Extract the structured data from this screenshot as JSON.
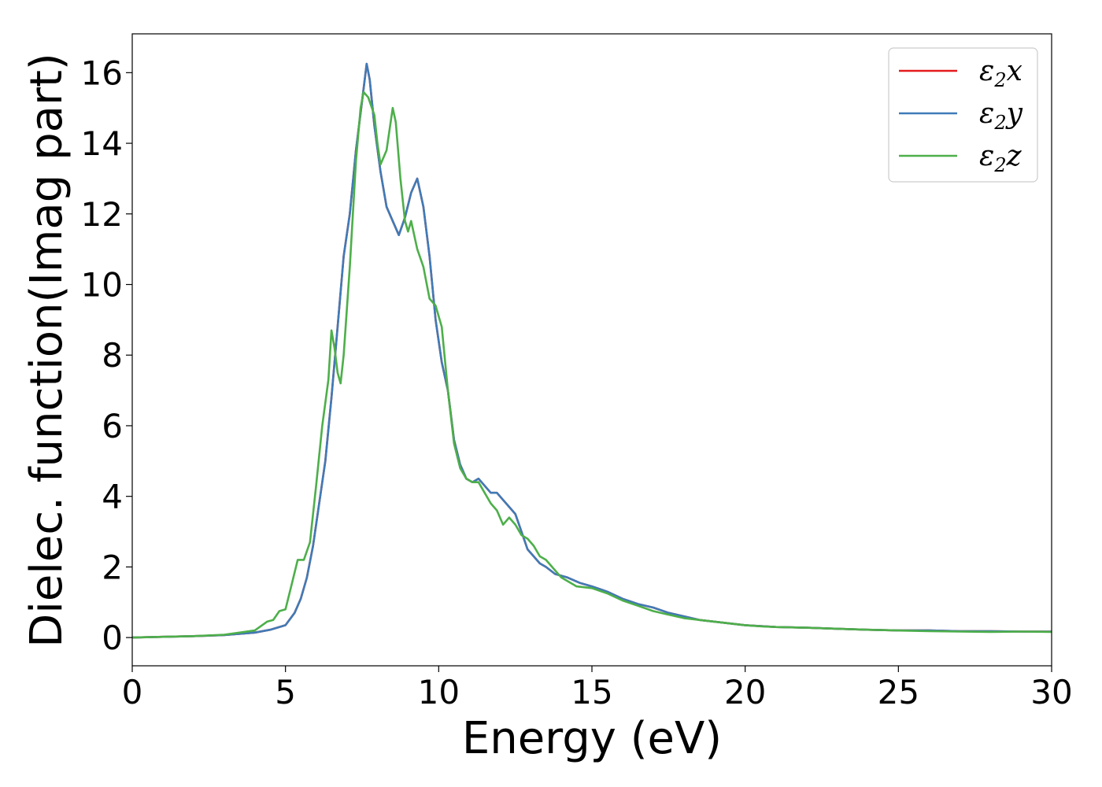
{
  "chart_data": {
    "type": "line",
    "xlabel": "Energy (eV)",
    "ylabel": "Dielec. function(Imag part)",
    "xlim": [
      0,
      30
    ],
    "ylim": [
      -0.8,
      17.1
    ],
    "xticks": [
      0,
      5,
      10,
      15,
      20,
      25,
      30
    ],
    "yticks": [
      0,
      2,
      4,
      6,
      8,
      10,
      12,
      14,
      16
    ],
    "grid": false,
    "legend_position": "top-right",
    "series": [
      {
        "name": "ε₂x",
        "legend_main": "ε",
        "legend_sub": "2",
        "legend_var": "x",
        "color": "#e41a1c",
        "points": [
          [
            0,
            0
          ],
          [
            1,
            0.02
          ],
          [
            2,
            0.04
          ],
          [
            3,
            0.07
          ],
          [
            4,
            0.14
          ],
          [
            4.5,
            0.22
          ],
          [
            5,
            0.35
          ],
          [
            5.3,
            0.7
          ],
          [
            5.5,
            1.1
          ],
          [
            5.7,
            1.7
          ],
          [
            5.9,
            2.6
          ],
          [
            6.1,
            3.8
          ],
          [
            6.3,
            5.0
          ],
          [
            6.5,
            6.8
          ],
          [
            6.7,
            8.8
          ],
          [
            6.9,
            10.8
          ],
          [
            7.1,
            12.0
          ],
          [
            7.3,
            13.8
          ],
          [
            7.5,
            15.2
          ],
          [
            7.65,
            16.25
          ],
          [
            7.75,
            15.8
          ],
          [
            7.9,
            14.5
          ],
          [
            8.1,
            13.2
          ],
          [
            8.3,
            12.2
          ],
          [
            8.5,
            11.8
          ],
          [
            8.7,
            11.4
          ],
          [
            8.9,
            11.9
          ],
          [
            9.1,
            12.6
          ],
          [
            9.3,
            13.0
          ],
          [
            9.5,
            12.2
          ],
          [
            9.7,
            10.8
          ],
          [
            9.9,
            9.0
          ],
          [
            10.1,
            7.8
          ],
          [
            10.3,
            7.0
          ],
          [
            10.5,
            5.6
          ],
          [
            10.7,
            4.9
          ],
          [
            10.9,
            4.5
          ],
          [
            11.1,
            4.4
          ],
          [
            11.3,
            4.5
          ],
          [
            11.5,
            4.3
          ],
          [
            11.7,
            4.1
          ],
          [
            11.9,
            4.1
          ],
          [
            12.1,
            3.9
          ],
          [
            12.3,
            3.7
          ],
          [
            12.5,
            3.5
          ],
          [
            12.7,
            3.0
          ],
          [
            12.9,
            2.5
          ],
          [
            13.1,
            2.3
          ],
          [
            13.3,
            2.1
          ],
          [
            13.5,
            2.0
          ],
          [
            13.8,
            1.8
          ],
          [
            14.2,
            1.7
          ],
          [
            14.6,
            1.55
          ],
          [
            15,
            1.45
          ],
          [
            15.5,
            1.3
          ],
          [
            16,
            1.1
          ],
          [
            16.5,
            0.95
          ],
          [
            17,
            0.85
          ],
          [
            17.5,
            0.7
          ],
          [
            18,
            0.6
          ],
          [
            18.5,
            0.5
          ],
          [
            19,
            0.45
          ],
          [
            19.5,
            0.4
          ],
          [
            20,
            0.35
          ],
          [
            21,
            0.3
          ],
          [
            22,
            0.28
          ],
          [
            23,
            0.25
          ],
          [
            24,
            0.22
          ],
          [
            25,
            0.2
          ],
          [
            26,
            0.2
          ],
          [
            27,
            0.18
          ],
          [
            28,
            0.18
          ],
          [
            29,
            0.17
          ],
          [
            30,
            0.17
          ]
        ]
      },
      {
        "name": "ε₂y",
        "legend_main": "ε",
        "legend_sub": "2",
        "legend_var": "y",
        "color": "#3f7bb7",
        "points": [
          [
            0,
            0
          ],
          [
            1,
            0.02
          ],
          [
            2,
            0.04
          ],
          [
            3,
            0.07
          ],
          [
            4,
            0.14
          ],
          [
            4.5,
            0.22
          ],
          [
            5,
            0.35
          ],
          [
            5.3,
            0.7
          ],
          [
            5.5,
            1.1
          ],
          [
            5.7,
            1.7
          ],
          [
            5.9,
            2.6
          ],
          [
            6.1,
            3.8
          ],
          [
            6.3,
            5.0
          ],
          [
            6.5,
            6.8
          ],
          [
            6.7,
            8.8
          ],
          [
            6.9,
            10.8
          ],
          [
            7.1,
            12.0
          ],
          [
            7.3,
            13.8
          ],
          [
            7.5,
            15.2
          ],
          [
            7.65,
            16.25
          ],
          [
            7.75,
            15.8
          ],
          [
            7.9,
            14.5
          ],
          [
            8.1,
            13.2
          ],
          [
            8.3,
            12.2
          ],
          [
            8.5,
            11.8
          ],
          [
            8.7,
            11.4
          ],
          [
            8.9,
            11.9
          ],
          [
            9.1,
            12.6
          ],
          [
            9.3,
            13.0
          ],
          [
            9.5,
            12.2
          ],
          [
            9.7,
            10.8
          ],
          [
            9.9,
            9.0
          ],
          [
            10.1,
            7.8
          ],
          [
            10.3,
            7.0
          ],
          [
            10.5,
            5.6
          ],
          [
            10.7,
            4.9
          ],
          [
            10.9,
            4.5
          ],
          [
            11.1,
            4.4
          ],
          [
            11.3,
            4.5
          ],
          [
            11.5,
            4.3
          ],
          [
            11.7,
            4.1
          ],
          [
            11.9,
            4.1
          ],
          [
            12.1,
            3.9
          ],
          [
            12.3,
            3.7
          ],
          [
            12.5,
            3.5
          ],
          [
            12.7,
            3.0
          ],
          [
            12.9,
            2.5
          ],
          [
            13.1,
            2.3
          ],
          [
            13.3,
            2.1
          ],
          [
            13.5,
            2.0
          ],
          [
            13.8,
            1.8
          ],
          [
            14.2,
            1.7
          ],
          [
            14.6,
            1.55
          ],
          [
            15,
            1.45
          ],
          [
            15.5,
            1.3
          ],
          [
            16,
            1.1
          ],
          [
            16.5,
            0.95
          ],
          [
            17,
            0.85
          ],
          [
            17.5,
            0.7
          ],
          [
            18,
            0.6
          ],
          [
            18.5,
            0.5
          ],
          [
            19,
            0.45
          ],
          [
            19.5,
            0.4
          ],
          [
            20,
            0.35
          ],
          [
            21,
            0.3
          ],
          [
            22,
            0.28
          ],
          [
            23,
            0.25
          ],
          [
            24,
            0.22
          ],
          [
            25,
            0.2
          ],
          [
            26,
            0.2
          ],
          [
            27,
            0.18
          ],
          [
            28,
            0.18
          ],
          [
            29,
            0.17
          ],
          [
            30,
            0.17
          ]
        ]
      },
      {
        "name": "ε₂z",
        "legend_main": "ε",
        "legend_sub": "2",
        "legend_var": "z",
        "color": "#4daf4a",
        "points": [
          [
            0,
            0
          ],
          [
            1,
            0.02
          ],
          [
            2,
            0.04
          ],
          [
            3,
            0.08
          ],
          [
            4,
            0.2
          ],
          [
            4.4,
            0.45
          ],
          [
            4.6,
            0.5
          ],
          [
            4.8,
            0.75
          ],
          [
            5.0,
            0.8
          ],
          [
            5.2,
            1.5
          ],
          [
            5.4,
            2.2
          ],
          [
            5.6,
            2.2
          ],
          [
            5.8,
            2.7
          ],
          [
            6.0,
            4.3
          ],
          [
            6.2,
            6.0
          ],
          [
            6.4,
            7.3
          ],
          [
            6.5,
            8.7
          ],
          [
            6.6,
            8.2
          ],
          [
            6.7,
            7.5
          ],
          [
            6.8,
            7.2
          ],
          [
            6.9,
            8.0
          ],
          [
            7.1,
            10.5
          ],
          [
            7.3,
            13.5
          ],
          [
            7.45,
            15.0
          ],
          [
            7.55,
            15.45
          ],
          [
            7.7,
            15.3
          ],
          [
            7.9,
            14.8
          ],
          [
            8.0,
            14.0
          ],
          [
            8.1,
            13.4
          ],
          [
            8.3,
            13.8
          ],
          [
            8.5,
            15.0
          ],
          [
            8.6,
            14.6
          ],
          [
            8.75,
            13.0
          ],
          [
            8.9,
            11.8
          ],
          [
            9.0,
            11.5
          ],
          [
            9.1,
            11.8
          ],
          [
            9.3,
            11.0
          ],
          [
            9.5,
            10.5
          ],
          [
            9.7,
            9.6
          ],
          [
            9.9,
            9.4
          ],
          [
            10.1,
            8.8
          ],
          [
            10.3,
            7.0
          ],
          [
            10.5,
            5.5
          ],
          [
            10.7,
            4.8
          ],
          [
            10.9,
            4.5
          ],
          [
            11.1,
            4.4
          ],
          [
            11.3,
            4.4
          ],
          [
            11.5,
            4.1
          ],
          [
            11.7,
            3.8
          ],
          [
            11.9,
            3.6
          ],
          [
            12.1,
            3.2
          ],
          [
            12.3,
            3.4
          ],
          [
            12.5,
            3.2
          ],
          [
            12.7,
            2.9
          ],
          [
            12.9,
            2.8
          ],
          [
            13.1,
            2.6
          ],
          [
            13.3,
            2.3
          ],
          [
            13.5,
            2.2
          ],
          [
            13.7,
            2.0
          ],
          [
            14,
            1.7
          ],
          [
            14.5,
            1.45
          ],
          [
            15,
            1.4
          ],
          [
            15.5,
            1.25
          ],
          [
            16,
            1.05
          ],
          [
            16.5,
            0.9
          ],
          [
            17,
            0.75
          ],
          [
            17.5,
            0.65
          ],
          [
            18,
            0.55
          ],
          [
            18.5,
            0.5
          ],
          [
            19,
            0.45
          ],
          [
            19.5,
            0.4
          ],
          [
            20,
            0.35
          ],
          [
            20.5,
            0.32
          ],
          [
            21,
            0.3
          ],
          [
            22,
            0.28
          ],
          [
            23,
            0.25
          ],
          [
            24,
            0.22
          ],
          [
            25,
            0.2
          ],
          [
            26,
            0.18
          ],
          [
            27,
            0.17
          ],
          [
            28,
            0.16
          ],
          [
            29,
            0.17
          ],
          [
            30,
            0.16
          ]
        ]
      }
    ]
  }
}
